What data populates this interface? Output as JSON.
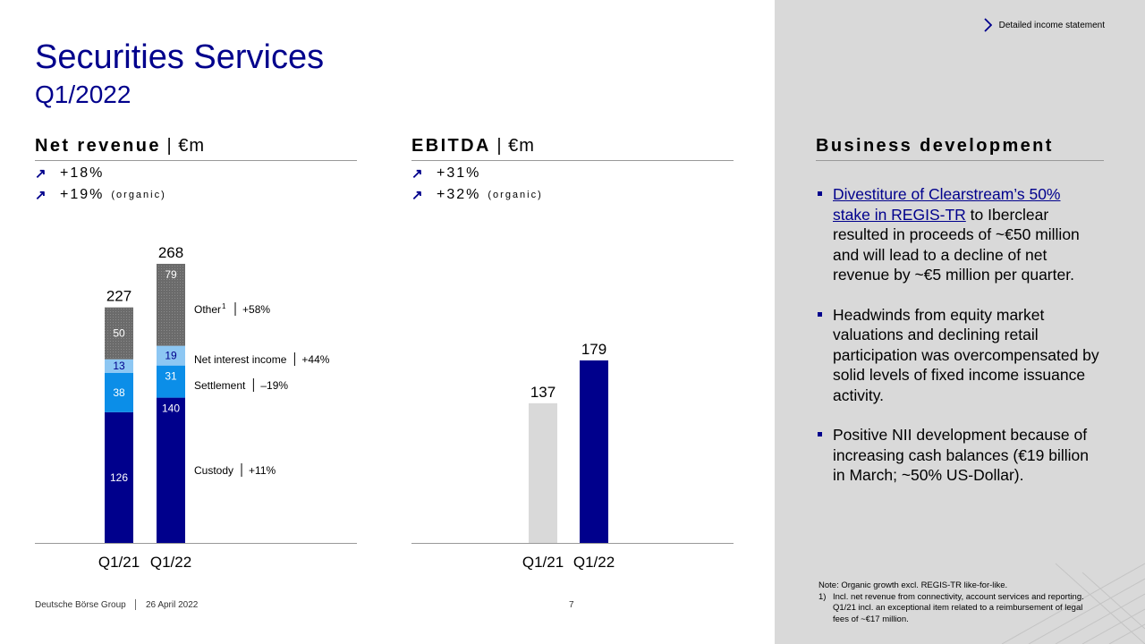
{
  "header": {
    "link_label": "Detailed income statement",
    "title": "Securities Services",
    "subtitle": "Q1/2022"
  },
  "net_revenue": {
    "heading": "Net revenue",
    "unit": " | €m",
    "growth": "+18%",
    "growth_organic": "+19%",
    "organic_label": "(organic)"
  },
  "ebitda": {
    "heading": "EBITDA",
    "unit": " | €m",
    "growth": "+31%",
    "growth_organic": "+32%",
    "organic_label": "(organic)"
  },
  "business": {
    "heading": "Business development",
    "bullets": [
      {
        "link": "Divestiture of Clearstream’s 50% stake in REGIS-TR",
        "text": " to Iberclear resulted in proceeds of ~€50 million and will lead to a decline of net revenue by ~€5 million per quarter."
      },
      {
        "link": "",
        "text": "Headwinds from equity market valuations and declining retail participation was overcompensated by solid levels of fixed income issuance activity."
      },
      {
        "link": "",
        "text": "Positive NII development because of increasing cash balances (€19 billion in March; ~50% US-Dollar)."
      }
    ]
  },
  "note": {
    "line1": "Note: Organic growth excl. REGIS-TR like-for-like.",
    "fn_num": "1)",
    "fn_text": "Incl. net revenue from connectivity, account services and reporting. Q1/21 incl. an exceptional item related to a reimbursement of legal fees of ~€17 million."
  },
  "footer": {
    "company": "Deutsche Börse Group",
    "date": "26 April 2022",
    "page": "7"
  },
  "colors": {
    "brand": "#00008c",
    "settlement": "#0b8ee8",
    "nii": "#8dc7f3",
    "other": "#6b6b6b",
    "prior": "#d9d9d9",
    "panel": "#d9d9d9"
  },
  "chart_data": [
    {
      "type": "bar",
      "stacked": true,
      "title": "Net revenue | €m",
      "categories": [
        "Q1/21",
        "Q1/22"
      ],
      "totals": [
        227,
        268
      ],
      "series": [
        {
          "name": "Custody",
          "values": [
            126,
            140
          ],
          "growth": "+11%",
          "color": "#00008c"
        },
        {
          "name": "Settlement",
          "values": [
            38,
            31
          ],
          "growth": "–19%",
          "color": "#0b8ee8"
        },
        {
          "name": "Net interest income",
          "values": [
            13,
            19
          ],
          "growth": "+44%",
          "color": "#8dc7f3"
        },
        {
          "name": "Other",
          "footnote": "1",
          "values": [
            50,
            79
          ],
          "growth": "+58%",
          "color": "#6b6b6b"
        }
      ]
    },
    {
      "type": "bar",
      "title": "EBITDA | €m",
      "categories": [
        "Q1/21",
        "Q1/22"
      ],
      "values": [
        137,
        179
      ],
      "colors": [
        "#d9d9d9",
        "#00008c"
      ]
    }
  ]
}
